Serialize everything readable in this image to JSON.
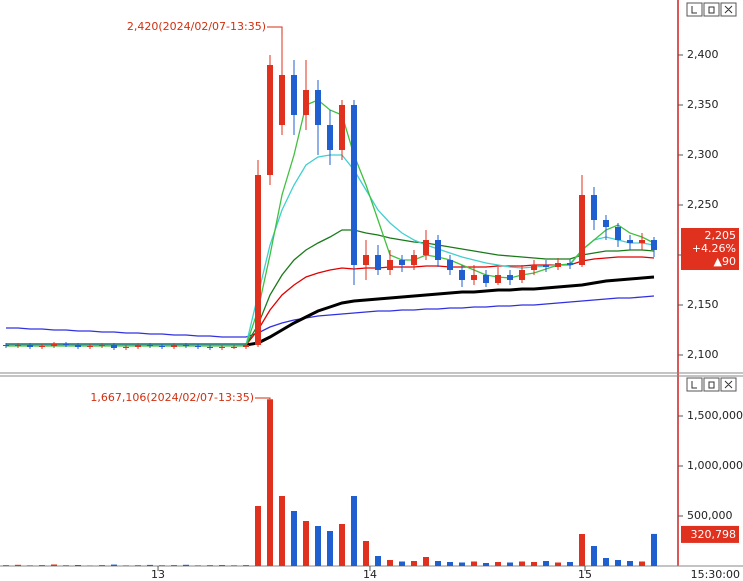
{
  "chart_data": [
    {
      "type": "candlestick",
      "categories": [
        null,
        null,
        null,
        null,
        null,
        null,
        null,
        null,
        null,
        null,
        null,
        null,
        null,
        null,
        null,
        null,
        null,
        null,
        null,
        null,
        null,
        null,
        null,
        null,
        null,
        null,
        null,
        null,
        null,
        null,
        null,
        null,
        null,
        null,
        null,
        null,
        null,
        null,
        null,
        null,
        null,
        null,
        null,
        null,
        null,
        null,
        null,
        null,
        null,
        null,
        null,
        null,
        null,
        null,
        null
      ],
      "open": [
        2110,
        2109,
        2110,
        2108,
        2109,
        2111,
        2110,
        2108,
        2109,
        2110,
        2107,
        2108,
        2110,
        2109,
        2108,
        2110,
        2109,
        2108,
        2107,
        2108,
        2108,
        2110,
        2280,
        2330,
        2380,
        2340,
        2365,
        2330,
        2305,
        2350,
        2190,
        2200,
        2185,
        2195,
        2190,
        2200,
        2215,
        2195,
        2185,
        2175,
        2180,
        2172,
        2180,
        2175,
        2185,
        2190,
        2188,
        2192,
        2190,
        2260,
        2235,
        2228,
        2215,
        2212,
        2215
      ],
      "close": [
        2109,
        2110,
        2108,
        2109,
        2111,
        2110,
        2108,
        2109,
        2110,
        2107,
        2108,
        2110,
        2109,
        2108,
        2110,
        2109,
        2108,
        2107,
        2108,
        2108,
        2110,
        2280,
        2390,
        2380,
        2340,
        2365,
        2330,
        2305,
        2350,
        2190,
        2200,
        2185,
        2195,
        2190,
        2200,
        2215,
        2195,
        2185,
        2175,
        2180,
        2172,
        2180,
        2175,
        2185,
        2190,
        2188,
        2192,
        2190,
        2260,
        2235,
        2228,
        2215,
        2212,
        2215,
        2205
      ],
      "high": [
        2112,
        2112,
        2112,
        2111,
        2113,
        2113,
        2112,
        2111,
        2112,
        2112,
        2110,
        2112,
        2112,
        2111,
        2112,
        2112,
        2111,
        2110,
        2110,
        2110,
        2112,
        2295,
        2400,
        2420,
        2395,
        2395,
        2375,
        2345,
        2355,
        2355,
        2215,
        2210,
        2205,
        2200,
        2205,
        2225,
        2220,
        2200,
        2190,
        2190,
        2185,
        2188,
        2185,
        2190,
        2195,
        2195,
        2197,
        2196,
        2280,
        2268,
        2240,
        2232,
        2220,
        2222,
        2218
      ],
      "low": [
        2107,
        2107,
        2106,
        2106,
        2107,
        2108,
        2106,
        2106,
        2107,
        2105,
        2105,
        2106,
        2107,
        2106,
        2106,
        2107,
        2106,
        2105,
        2105,
        2106,
        2106,
        2108,
        2270,
        2320,
        2320,
        2325,
        2300,
        2290,
        2295,
        2170,
        2175,
        2180,
        2180,
        2183,
        2185,
        2195,
        2188,
        2180,
        2168,
        2170,
        2168,
        2170,
        2170,
        2172,
        2180,
        2183,
        2185,
        2186,
        2188,
        2225,
        2215,
        2208,
        2205,
        2205,
        2198
      ],
      "up_color": "#e0301e",
      "down_color": "#1f5fd0",
      "series": [
        {
          "color": "#3030e0",
          "values": [
            2127,
            2127,
            2126,
            2126,
            2125,
            2125,
            2124,
            2124,
            2123,
            2123,
            2122,
            2122,
            2121,
            2121,
            2120,
            2120,
            2119,
            2119,
            2118,
            2118,
            2118,
            2122,
            2128,
            2132,
            2135,
            2137,
            2139,
            2140,
            2141,
            2142,
            2143,
            2144,
            2144,
            2145,
            2145,
            2146,
            2146,
            2147,
            2147,
            2148,
            2148,
            2149,
            2149,
            2150,
            2150,
            2151,
            2152,
            2153,
            2154,
            2155,
            2156,
            2157,
            2157,
            2158,
            2159
          ]
        },
        {
          "color": "#000000",
          "values": [
            2110,
            2110,
            2110,
            2110,
            2110,
            2110,
            2110,
            2110,
            2110,
            2110,
            2110,
            2110,
            2110,
            2110,
            2110,
            2110,
            2110,
            2110,
            2110,
            2110,
            2110,
            2112,
            2118,
            2125,
            2132,
            2138,
            2144,
            2148,
            2152,
            2154,
            2155,
            2156,
            2157,
            2158,
            2159,
            2160,
            2161,
            2162,
            2163,
            2163,
            2164,
            2165,
            2165,
            2166,
            2166,
            2167,
            2168,
            2169,
            2170,
            2172,
            2174,
            2175,
            2176,
            2177,
            2178
          ]
        },
        {
          "color": "#e00000",
          "values": [
            2110,
            2110,
            2110,
            2110,
            2110,
            2110,
            2110,
            2110,
            2110,
            2110,
            2110,
            2110,
            2110,
            2110,
            2110,
            2110,
            2110,
            2110,
            2110,
            2110,
            2110,
            2125,
            2145,
            2160,
            2170,
            2178,
            2182,
            2185,
            2187,
            2186,
            2187,
            2187,
            2188,
            2188,
            2188,
            2189,
            2189,
            2188,
            2188,
            2188,
            2188,
            2189,
            2189,
            2189,
            2190,
            2190,
            2190,
            2190,
            2194,
            2196,
            2197,
            2198,
            2198,
            2198,
            2197
          ]
        },
        {
          "color": "#1a7a1a",
          "values": [
            2110,
            2110,
            2110,
            2110,
            2110,
            2110,
            2110,
            2110,
            2110,
            2110,
            2110,
            2110,
            2110,
            2110,
            2110,
            2110,
            2110,
            2110,
            2110,
            2110,
            2110,
            2130,
            2160,
            2180,
            2195,
            2205,
            2212,
            2218,
            2225,
            2225,
            2222,
            2220,
            2217,
            2215,
            2213,
            2212,
            2210,
            2208,
            2206,
            2204,
            2202,
            2200,
            2199,
            2198,
            2197,
            2196,
            2196,
            2196,
            2200,
            2202,
            2204,
            2204,
            2205,
            2205,
            2204
          ]
        },
        {
          "color": "#40d0d0",
          "values": [
            2110,
            2110,
            2110,
            2110,
            2110,
            2110,
            2110,
            2110,
            2110,
            2110,
            2110,
            2110,
            2110,
            2110,
            2110,
            2110,
            2110,
            2110,
            2110,
            2110,
            2110,
            2160,
            2210,
            2245,
            2270,
            2290,
            2298,
            2300,
            2300,
            2285,
            2265,
            2245,
            2232,
            2222,
            2215,
            2210,
            2206,
            2202,
            2198,
            2195,
            2192,
            2190,
            2188,
            2187,
            2188,
            2189,
            2190,
            2190,
            2205,
            2215,
            2218,
            2215,
            2212,
            2212,
            2210
          ]
        },
        {
          "color": "#40c040",
          "values": [
            2109,
            2109,
            2109,
            2109,
            2109,
            2109,
            2109,
            2109,
            2109,
            2109,
            2109,
            2109,
            2109,
            2109,
            2109,
            2109,
            2109,
            2109,
            2109,
            2109,
            2109,
            2145,
            2200,
            2260,
            2300,
            2350,
            2355,
            2345,
            2340,
            2300,
            2270,
            2235,
            2200,
            2195,
            2195,
            2200,
            2198,
            2195,
            2190,
            2185,
            2180,
            2178,
            2177,
            2180,
            2182,
            2186,
            2190,
            2191,
            2205,
            2215,
            2225,
            2230,
            2222,
            2218,
            2212
          ]
        }
      ],
      "ylim": [
        2083,
        2455
      ],
      "yticks": [
        {
          "value": 2100,
          "label": "2,100"
        },
        {
          "value": 2150,
          "label": "2,150"
        },
        {
          "value": 2200,
          "label": "2,200"
        },
        {
          "value": 2250,
          "label": "2,250"
        },
        {
          "value": 2300,
          "label": "2,300"
        },
        {
          "value": 2350,
          "label": "2,350"
        },
        {
          "value": 2400,
          "label": "2,400"
        }
      ],
      "annotation": "2,420(2024/02/07-13:35)",
      "last_label": "2,205",
      "change_pct": "+4.26%",
      "change": "▲90"
    },
    {
      "type": "bar",
      "values": [
        8000,
        12000,
        6000,
        9000,
        15000,
        7000,
        10000,
        5000,
        9000,
        14000,
        6000,
        8000,
        11000,
        7000,
        9000,
        12000,
        6000,
        8000,
        10000,
        7000,
        9000,
        600000,
        1667106,
        700000,
        550000,
        450000,
        400000,
        350000,
        420000,
        700000,
        250000,
        100000,
        60000,
        45000,
        50000,
        90000,
        50000,
        40000,
        35000,
        45000,
        30000,
        40000,
        35000,
        45000,
        40000,
        50000,
        35000,
        40000,
        320000,
        200000,
        80000,
        60000,
        50000,
        45000,
        320798
      ],
      "color": "#e0301e",
      "down_color": "#1f5fd0",
      "ylim": [
        0,
        1900000
      ],
      "yticks": [
        {
          "value": 500000,
          "label": "500,000"
        },
        {
          "value": 1000000,
          "label": "1,000,000"
        },
        {
          "value": 1500000,
          "label": "1,500,000"
        }
      ],
      "xlim": [
        -0.5,
        56
      ],
      "xticks": [
        {
          "value": 12.67,
          "label": "13"
        },
        {
          "value": 30.33,
          "label": "14"
        },
        {
          "value": 48.25,
          "label": "15"
        }
      ],
      "time_label": "15:30:00",
      "annotation": "1,667,106(2024/02/07-13:35)",
      "last_label": "320,798"
    }
  ]
}
